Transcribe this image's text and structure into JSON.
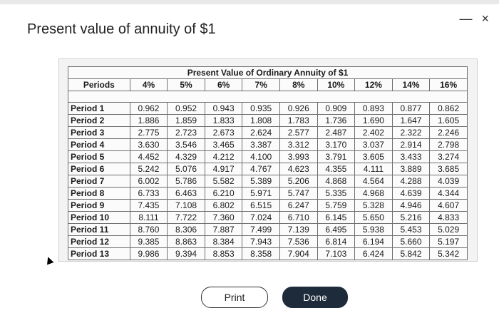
{
  "dialog": {
    "title": "Present value of annuity of $1",
    "minimize_icon": "—",
    "close_icon": "×"
  },
  "table": {
    "title": "Present Value of Ordinary Annuity of $1",
    "columns": [
      "Periods",
      "4%",
      "5%",
      "6%",
      "7%",
      "8%",
      "10%",
      "12%",
      "14%",
      "16%"
    ],
    "rows": [
      {
        "label": "Period 1",
        "values": [
          "0.962",
          "0.952",
          "0.943",
          "0.935",
          "0.926",
          "0.909",
          "0.893",
          "0.877",
          "0.862"
        ]
      },
      {
        "label": "Period 2",
        "values": [
          "1.886",
          "1.859",
          "1.833",
          "1.808",
          "1.783",
          "1.736",
          "1.690",
          "1.647",
          "1.605"
        ]
      },
      {
        "label": "Period 3",
        "values": [
          "2.775",
          "2.723",
          "2.673",
          "2.624",
          "2.577",
          "2.487",
          "2.402",
          "2.322",
          "2.246"
        ]
      },
      {
        "label": "Period 4",
        "values": [
          "3.630",
          "3.546",
          "3.465",
          "3.387",
          "3.312",
          "3.170",
          "3.037",
          "2.914",
          "2.798"
        ]
      },
      {
        "label": "Period 5",
        "values": [
          "4.452",
          "4.329",
          "4.212",
          "4.100",
          "3.993",
          "3.791",
          "3.605",
          "3.433",
          "3.274"
        ]
      },
      {
        "label": "Period 6",
        "values": [
          "5.242",
          "5.076",
          "4.917",
          "4.767",
          "4.623",
          "4.355",
          "4.111",
          "3.889",
          "3.685"
        ]
      },
      {
        "label": "Period 7",
        "values": [
          "6.002",
          "5.786",
          "5.582",
          "5.389",
          "5.206",
          "4.868",
          "4.564",
          "4.288",
          "4.039"
        ]
      },
      {
        "label": "Period 8",
        "values": [
          "6.733",
          "6.463",
          "6.210",
          "5.971",
          "5.747",
          "5.335",
          "4.968",
          "4.639",
          "4.344"
        ]
      },
      {
        "label": "Period 9",
        "values": [
          "7.435",
          "7.108",
          "6.802",
          "6.515",
          "6.247",
          "5.759",
          "5.328",
          "4.946",
          "4.607"
        ]
      },
      {
        "label": "Period 10",
        "values": [
          "8.111",
          "7.722",
          "7.360",
          "7.024",
          "6.710",
          "6.145",
          "5.650",
          "5.216",
          "4.833"
        ]
      },
      {
        "label": "Period 11",
        "values": [
          "8.760",
          "8.306",
          "7.887",
          "7.499",
          "7.139",
          "6.495",
          "5.938",
          "5.453",
          "5.029"
        ]
      },
      {
        "label": "Period 12",
        "values": [
          "9.385",
          "8.863",
          "8.384",
          "7.943",
          "7.536",
          "6.814",
          "6.194",
          "5.660",
          "5.197"
        ]
      },
      {
        "label": "Period 13",
        "values": [
          "9.986",
          "9.394",
          "8.853",
          "8.358",
          "7.904",
          "7.103",
          "6.424",
          "5.842",
          "5.342"
        ]
      }
    ]
  },
  "buttons": {
    "print": "Print",
    "done": "Done"
  }
}
